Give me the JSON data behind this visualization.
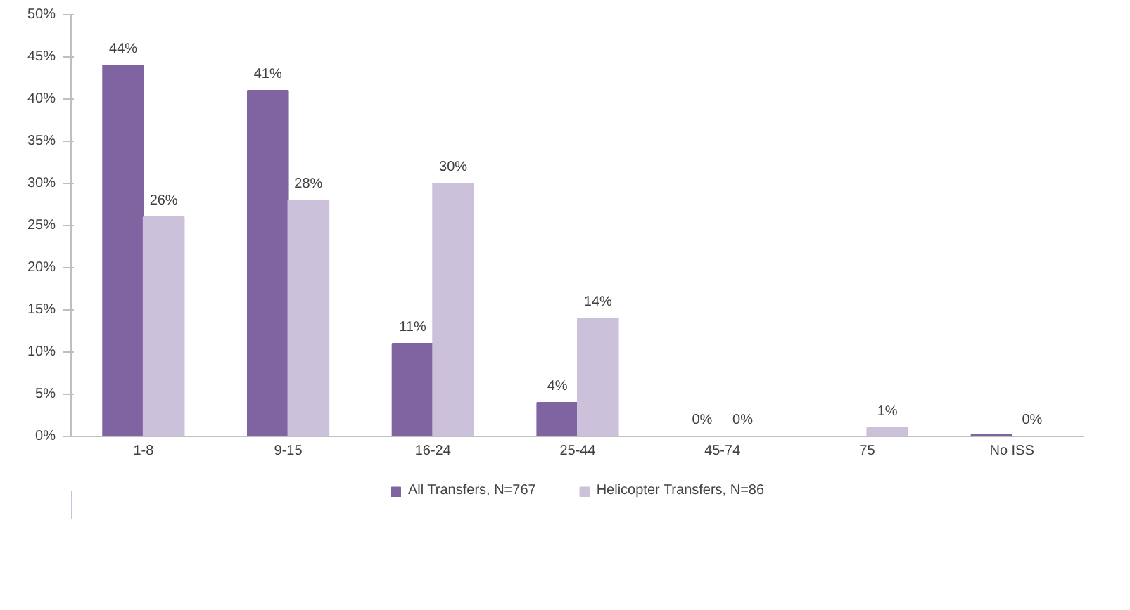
{
  "chart_data": {
    "type": "bar",
    "categories": [
      "1-8",
      "9-15",
      "16-24",
      "25-44",
      "45-74",
      "75",
      "No ISS"
    ],
    "series": [
      {
        "name": "All Transfers, N=767",
        "color": "#8064a2",
        "values": [
          44,
          41,
          11,
          4,
          0,
          null,
          0.2
        ],
        "value_labels": [
          "44%",
          "41%",
          "11%",
          "4%",
          "0%",
          null,
          null
        ]
      },
      {
        "name": "Helicopter Transfers, N=86",
        "color": "#ccc1da",
        "values": [
          26,
          28,
          30,
          14,
          0,
          1,
          0
        ],
        "value_labels": [
          "26%",
          "28%",
          "30%",
          "14%",
          "0%",
          "1%",
          "0%"
        ]
      }
    ],
    "ylim": [
      0,
      50
    ],
    "yticks": [
      {
        "value": 0,
        "label": "0%"
      },
      {
        "value": 5,
        "label": "5%"
      },
      {
        "value": 10,
        "label": "10%"
      },
      {
        "value": 15,
        "label": "15%"
      },
      {
        "value": 20,
        "label": "20%"
      },
      {
        "value": 25,
        "label": "25%"
      },
      {
        "value": 30,
        "label": "30%"
      },
      {
        "value": 35,
        "label": "35%"
      },
      {
        "value": 40,
        "label": "40%"
      },
      {
        "value": 45,
        "label": "45%"
      },
      {
        "value": 50,
        "label": "50%"
      }
    ],
    "grid": false,
    "legend": "bottom"
  }
}
